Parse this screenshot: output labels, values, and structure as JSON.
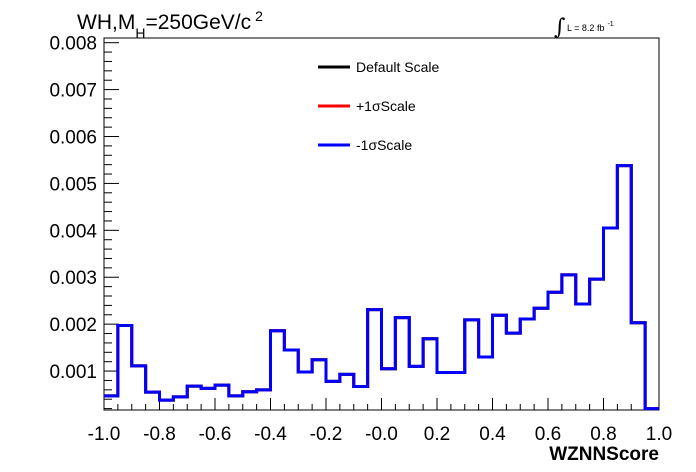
{
  "chart_data": {
    "type": "line",
    "title": {
      "prefix": "WH,M",
      "subscript": "H",
      "suffix": "=250GeV/c",
      "superscript": "2"
    },
    "luminosity": {
      "label": "L = 8.2 fb",
      "superscript": "-1"
    },
    "xlabel": "WZNNScore",
    "ylabel": "",
    "xlim": [
      -1.0,
      1.0
    ],
    "ylim": [
      0.00017,
      0.0081
    ],
    "x_ticks": [
      "-1.0",
      "-0.8",
      "-0.6",
      "-0.4",
      "-0.2",
      "-0.0",
      "0.2",
      "0.4",
      "0.6",
      "0.8",
      "1.0"
    ],
    "x_tick_values": [
      -1.0,
      -0.8,
      -0.6,
      -0.4,
      -0.2,
      0.0,
      0.2,
      0.4,
      0.6,
      0.8,
      1.0
    ],
    "y_ticks": [
      "0.001",
      "0.002",
      "0.003",
      "0.004",
      "0.005",
      "0.006",
      "0.007",
      "0.008"
    ],
    "y_tick_values": [
      0.001,
      0.002,
      0.003,
      0.004,
      0.005,
      0.006,
      0.007,
      0.008
    ],
    "bin_edges": [
      -1.0,
      -0.95,
      -0.9,
      -0.85,
      -0.8,
      -0.75,
      -0.7,
      -0.65,
      -0.6,
      -0.55,
      -0.5,
      -0.45,
      -0.4,
      -0.35,
      -0.3,
      -0.25,
      -0.2,
      -0.15,
      -0.1,
      -0.05,
      0.0,
      0.05,
      0.1,
      0.15,
      0.2,
      0.25,
      0.3,
      0.35,
      0.4,
      0.45,
      0.5,
      0.55,
      0.6,
      0.65,
      0.7,
      0.75,
      0.8,
      0.85,
      0.9,
      0.95,
      1.0
    ],
    "series": [
      {
        "name": "Default Scale",
        "color": "#000000",
        "values": [
          0.00047,
          0.00197,
          0.00111,
          0.00055,
          0.00038,
          0.00045,
          0.00068,
          0.00063,
          0.0007,
          0.00047,
          0.00056,
          0.0006,
          0.00186,
          0.00145,
          0.00098,
          0.00124,
          0.00078,
          0.00093,
          0.00067,
          0.00231,
          0.00105,
          0.00214,
          0.0011,
          0.00169,
          0.00097,
          0.00097,
          0.00209,
          0.0013,
          0.00219,
          0.00181,
          0.00211,
          0.00234,
          0.00268,
          0.00305,
          0.00243,
          0.00296,
          0.00405,
          0.00538,
          0.00203,
          0.0002
        ]
      },
      {
        "name": "+1σScale",
        "color": "#ff0000",
        "values": [
          0.00047,
          0.00197,
          0.00111,
          0.00055,
          0.00038,
          0.00045,
          0.00068,
          0.00063,
          0.0007,
          0.00047,
          0.00056,
          0.0006,
          0.00186,
          0.00145,
          0.00098,
          0.00124,
          0.00078,
          0.00093,
          0.00067,
          0.00231,
          0.00105,
          0.00214,
          0.0011,
          0.00169,
          0.00097,
          0.00097,
          0.00209,
          0.0013,
          0.00219,
          0.00181,
          0.00211,
          0.00234,
          0.00268,
          0.00305,
          0.00243,
          0.00296,
          0.00405,
          0.00538,
          0.00203,
          0.0002
        ]
      },
      {
        "name": "-1σScale",
        "color": "#0000ff",
        "values": [
          0.00047,
          0.00197,
          0.00111,
          0.00055,
          0.00038,
          0.00045,
          0.00068,
          0.00063,
          0.0007,
          0.00047,
          0.00056,
          0.0006,
          0.00186,
          0.00145,
          0.00098,
          0.00124,
          0.00078,
          0.00093,
          0.00067,
          0.00231,
          0.00105,
          0.00214,
          0.0011,
          0.00169,
          0.00097,
          0.00097,
          0.00209,
          0.0013,
          0.00219,
          0.00181,
          0.00211,
          0.00234,
          0.00268,
          0.00305,
          0.00243,
          0.00296,
          0.00405,
          0.00538,
          0.00203,
          0.0002
        ]
      }
    ],
    "legend_position": "top-center",
    "grid": false
  }
}
